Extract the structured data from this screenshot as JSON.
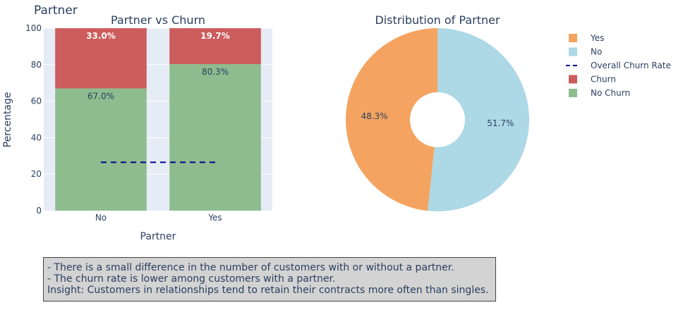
{
  "page_title": "Partner",
  "chart_data": [
    {
      "type": "bar",
      "stacked": true,
      "title": "Partner vs Churn",
      "xlabel": "Partner",
      "ylabel": "Percentage",
      "categories": [
        "No",
        "Yes"
      ],
      "ylim": [
        0,
        100
      ],
      "yticks": [
        0,
        20,
        40,
        60,
        80,
        100
      ],
      "series": [
        {
          "name": "No Churn",
          "values": [
            67.0,
            80.3
          ],
          "labels": [
            "67.0%",
            "80.3%"
          ],
          "color": "#8fbc8f"
        },
        {
          "name": "Churn",
          "values": [
            33.0,
            19.7
          ],
          "labels": [
            "33.0%",
            "19.7%"
          ],
          "color": "#cd5c5c"
        }
      ],
      "reference_line": {
        "name": "Overall Churn Rate",
        "value": 26.5,
        "color": "#00008b",
        "style": "dashed"
      },
      "grid": true,
      "plot_background": "#e5ecf6"
    },
    {
      "type": "pie",
      "hole": true,
      "title": "Distribution of Partner",
      "labels": [
        "Yes",
        "No"
      ],
      "values": [
        48.3,
        51.7
      ],
      "value_labels": [
        "48.3%",
        "51.7%"
      ],
      "colors": [
        "#f4a460",
        "#add8e6"
      ]
    }
  ],
  "legend": {
    "placement": "top-right",
    "items": [
      {
        "label": "Yes",
        "color": "#f4a460",
        "symbol": "square"
      },
      {
        "label": "No",
        "color": "#add8e6",
        "symbol": "square"
      },
      {
        "label": "Overall Churn Rate",
        "color": "#00008b",
        "symbol": "dash"
      },
      {
        "label": "Churn",
        "color": "#cd5c5c",
        "symbol": "square"
      },
      {
        "label": "No Churn",
        "color": "#8fbc8f",
        "symbol": "square"
      }
    ]
  },
  "insight_box": {
    "lines": [
      "- There is a small difference in the number of customers with or without a partner.",
      "- The churn rate is lower among customers with a partner.",
      "Insight: Customers in relationships tend to retain their contracts more often than singles."
    ]
  }
}
